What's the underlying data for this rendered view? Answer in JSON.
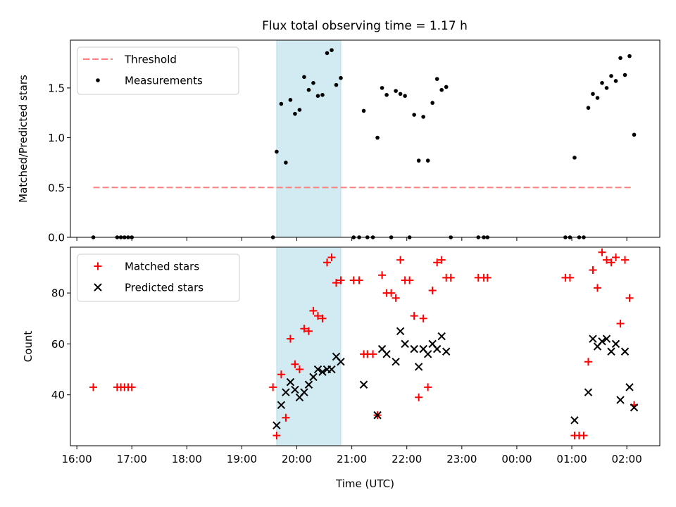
{
  "title": "Flux total observing time = 1.17 h",
  "chart_data": [
    {
      "type": "scatter",
      "panel": "top",
      "ylabel": "Matched/Predicted stars",
      "xlim": [
        "15:53",
        "02:36"
      ],
      "ylim": [
        0,
        1.98
      ],
      "y_ticks": [
        "0.0",
        "0.5",
        "1.0",
        "1.5"
      ],
      "threshold": {
        "name": "Threshold",
        "value": 0.5,
        "x_range": [
          "16:18",
          "02:05"
        ],
        "color": "#ff7f7f",
        "style": "dashed"
      },
      "highlight": {
        "x_range": [
          "19:38",
          "20:48"
        ],
        "color": "#add8e6"
      },
      "legend": {
        "position": "upper left",
        "entries": [
          "Threshold",
          "Measurements"
        ]
      },
      "series": [
        {
          "name": "Measurements",
          "color": "#000000",
          "marker": "dot",
          "points": [
            [
              "16:18",
              0.0
            ],
            [
              "16:44",
              0.0
            ],
            [
              "16:48",
              0.0
            ],
            [
              "16:52",
              0.0
            ],
            [
              "16:56",
              0.0
            ],
            [
              "17:00",
              0.0
            ],
            [
              "19:34",
              0.0
            ],
            [
              "19:38",
              0.86
            ],
            [
              "19:43",
              1.34
            ],
            [
              "19:48",
              0.75
            ],
            [
              "19:53",
              1.38
            ],
            [
              "19:58",
              1.24
            ],
            [
              "20:03",
              1.28
            ],
            [
              "20:08",
              1.61
            ],
            [
              "20:13",
              1.48
            ],
            [
              "20:18",
              1.55
            ],
            [
              "20:23",
              1.42
            ],
            [
              "20:28",
              1.43
            ],
            [
              "20:33",
              1.85
            ],
            [
              "20:38",
              1.88
            ],
            [
              "20:43",
              1.53
            ],
            [
              "20:48",
              1.6
            ],
            [
              "21:02",
              0.0
            ],
            [
              "21:08",
              0.0
            ],
            [
              "21:13",
              1.27
            ],
            [
              "21:17",
              0.0
            ],
            [
              "21:23",
              0.0
            ],
            [
              "21:28",
              1.0
            ],
            [
              "21:33",
              1.5
            ],
            [
              "21:38",
              1.43
            ],
            [
              "21:43",
              0.0
            ],
            [
              "21:48",
              1.47
            ],
            [
              "21:53",
              1.44
            ],
            [
              "21:58",
              1.42
            ],
            [
              "22:03",
              0.0
            ],
            [
              "22:08",
              1.23
            ],
            [
              "22:13",
              0.77
            ],
            [
              "22:18",
              1.21
            ],
            [
              "22:23",
              0.77
            ],
            [
              "22:28",
              1.35
            ],
            [
              "22:33",
              1.59
            ],
            [
              "22:38",
              1.48
            ],
            [
              "22:43",
              1.51
            ],
            [
              "22:48",
              0.0
            ],
            [
              "23:18",
              0.0
            ],
            [
              "23:24",
              0.0
            ],
            [
              "23:28",
              0.0
            ],
            [
              "00:53",
              0.0
            ],
            [
              "00:58",
              0.0
            ],
            [
              "01:03",
              0.8
            ],
            [
              "01:08",
              0.0
            ],
            [
              "01:13",
              0.0
            ],
            [
              "01:18",
              1.3
            ],
            [
              "01:23",
              1.44
            ],
            [
              "01:28",
              1.4
            ],
            [
              "01:33",
              1.55
            ],
            [
              "01:38",
              1.5
            ],
            [
              "01:43",
              1.62
            ],
            [
              "01:48",
              1.57
            ],
            [
              "01:53",
              1.8
            ],
            [
              "01:58",
              1.63
            ],
            [
              "02:03",
              1.82
            ],
            [
              "02:08",
              1.03
            ]
          ]
        }
      ]
    },
    {
      "type": "scatter",
      "panel": "bottom",
      "xlabel": "Time (UTC)",
      "ylabel": "Count",
      "x_ticks": [
        "16:00",
        "17:00",
        "18:00",
        "19:00",
        "20:00",
        "21:00",
        "22:00",
        "23:00",
        "00:00",
        "01:00",
        "02:00"
      ],
      "xlim": [
        "15:53",
        "02:36"
      ],
      "ylim": [
        20,
        98
      ],
      "y_ticks": [
        "40",
        "60",
        "80"
      ],
      "highlight": {
        "x_range": [
          "19:38",
          "20:48"
        ],
        "color": "#add8e6"
      },
      "legend": {
        "position": "upper left",
        "entries": [
          "Matched stars",
          "Predicted stars"
        ]
      },
      "series": [
        {
          "name": "Matched stars",
          "color": "#ff0000",
          "marker": "plus",
          "points": [
            [
              "16:18",
              43
            ],
            [
              "16:44",
              43
            ],
            [
              "16:48",
              43
            ],
            [
              "16:52",
              43
            ],
            [
              "16:56",
              43
            ],
            [
              "17:00",
              43
            ],
            [
              "19:34",
              43
            ],
            [
              "19:38",
              24
            ],
            [
              "19:43",
              48
            ],
            [
              "19:48",
              31
            ],
            [
              "19:53",
              62
            ],
            [
              "19:58",
              52
            ],
            [
              "20:03",
              50
            ],
            [
              "20:08",
              66
            ],
            [
              "20:13",
              65
            ],
            [
              "20:18",
              73
            ],
            [
              "20:23",
              71
            ],
            [
              "20:28",
              70
            ],
            [
              "20:33",
              92
            ],
            [
              "20:38",
              94
            ],
            [
              "20:43",
              84
            ],
            [
              "20:48",
              85
            ],
            [
              "21:02",
              85
            ],
            [
              "21:08",
              85
            ],
            [
              "21:13",
              56
            ],
            [
              "21:17",
              56
            ],
            [
              "21:23",
              56
            ],
            [
              "21:28",
              32
            ],
            [
              "21:33",
              87
            ],
            [
              "21:38",
              80
            ],
            [
              "21:43",
              80
            ],
            [
              "21:48",
              78
            ],
            [
              "21:53",
              93
            ],
            [
              "21:58",
              85
            ],
            [
              "22:03",
              85
            ],
            [
              "22:08",
              71
            ],
            [
              "22:13",
              39
            ],
            [
              "22:18",
              70
            ],
            [
              "22:23",
              43
            ],
            [
              "22:28",
              81
            ],
            [
              "22:33",
              92
            ],
            [
              "22:38",
              93
            ],
            [
              "22:43",
              86
            ],
            [
              "22:48",
              86
            ],
            [
              "23:18",
              86
            ],
            [
              "23:24",
              86
            ],
            [
              "23:28",
              86
            ],
            [
              "00:53",
              86
            ],
            [
              "00:58",
              86
            ],
            [
              "01:03",
              24
            ],
            [
              "01:08",
              24
            ],
            [
              "01:13",
              24
            ],
            [
              "01:18",
              53
            ],
            [
              "01:23",
              89
            ],
            [
              "01:28",
              82
            ],
            [
              "01:33",
              96
            ],
            [
              "01:38",
              93
            ],
            [
              "01:43",
              92
            ],
            [
              "01:48",
              94
            ],
            [
              "01:53",
              68
            ],
            [
              "01:58",
              93
            ],
            [
              "02:03",
              78
            ],
            [
              "02:08",
              36
            ]
          ]
        },
        {
          "name": "Predicted stars",
          "color": "#000000",
          "marker": "x",
          "points": [
            [
              "19:38",
              28
            ],
            [
              "19:43",
              36
            ],
            [
              "19:48",
              41
            ],
            [
              "19:53",
              45
            ],
            [
              "19:58",
              42
            ],
            [
              "20:03",
              39
            ],
            [
              "20:08",
              41
            ],
            [
              "20:13",
              44
            ],
            [
              "20:18",
              47
            ],
            [
              "20:23",
              50
            ],
            [
              "20:28",
              49
            ],
            [
              "20:33",
              50
            ],
            [
              "20:38",
              50
            ],
            [
              "20:43",
              55
            ],
            [
              "20:48",
              53
            ],
            [
              "21:13",
              44
            ],
            [
              "21:28",
              32
            ],
            [
              "21:33",
              58
            ],
            [
              "21:38",
              56
            ],
            [
              "21:48",
              53
            ],
            [
              "21:53",
              65
            ],
            [
              "21:58",
              60
            ],
            [
              "22:08",
              58
            ],
            [
              "22:13",
              51
            ],
            [
              "22:18",
              58
            ],
            [
              "22:28",
              60
            ],
            [
              "22:23",
              56
            ],
            [
              "22:33",
              58
            ],
            [
              "22:38",
              63
            ],
            [
              "22:43",
              57
            ],
            [
              "01:03",
              30
            ],
            [
              "01:18",
              41
            ],
            [
              "01:23",
              62
            ],
            [
              "01:28",
              59
            ],
            [
              "01:33",
              61
            ],
            [
              "01:38",
              62
            ],
            [
              "01:43",
              57
            ],
            [
              "01:48",
              60
            ],
            [
              "01:53",
              38
            ],
            [
              "01:58",
              57
            ],
            [
              "02:03",
              43
            ],
            [
              "02:08",
              35
            ]
          ]
        }
      ]
    }
  ]
}
